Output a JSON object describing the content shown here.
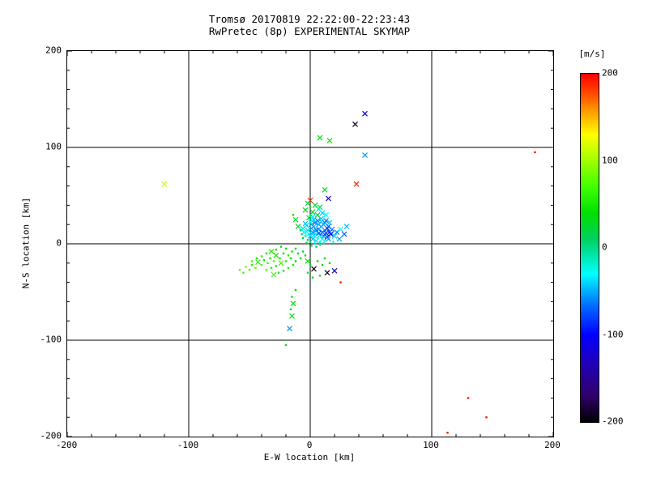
{
  "title": {
    "line1": "Tromsø 20170819 22:22:00-22:23:43",
    "line2": "RwPretec (8p) EXPERIMENTAL SKYMAP"
  },
  "chart_data": {
    "type": "scatter",
    "title": "Tromsø 20170819 22:22:00-22:23:43",
    "subtitle": "RwPretec (8p) EXPERIMENTAL SKYMAP",
    "xlabel": "E-W location [km]",
    "ylabel": "N-S location [km]",
    "xlim": [
      -200,
      200
    ],
    "ylim": [
      -200,
      200
    ],
    "x_ticks": [
      -200,
      -100,
      0,
      100,
      200
    ],
    "y_ticks": [
      -200,
      -100,
      0,
      100,
      200
    ],
    "grid": true,
    "background": "#ffffff",
    "axis_color": "#000000",
    "colorbar": {
      "label": "[m/s]",
      "ticks": [
        200,
        100,
        0,
        -100,
        -200
      ],
      "min": -200,
      "max": 200,
      "stops": [
        [
          -200,
          "#000000"
        ],
        [
          -170,
          "#30006a"
        ],
        [
          -130,
          "#2000c0"
        ],
        [
          -100,
          "#0000ff"
        ],
        [
          -70,
          "#0060ff"
        ],
        [
          -45,
          "#00c0ff"
        ],
        [
          -30,
          "#00ffff"
        ],
        [
          -10,
          "#00e8b0"
        ],
        [
          10,
          "#00d060"
        ],
        [
          40,
          "#00e000"
        ],
        [
          70,
          "#40ff00"
        ],
        [
          100,
          "#a0ff00"
        ],
        [
          130,
          "#ffff00"
        ],
        [
          160,
          "#ff9000"
        ],
        [
          180,
          "#ff4000"
        ],
        [
          200,
          "#ff0000"
        ]
      ]
    },
    "points": [
      [
        45,
        135,
        -110,
        "x"
      ],
      [
        37,
        124,
        -195,
        "x"
      ],
      [
        8,
        110,
        35,
        "x"
      ],
      [
        16,
        107,
        45,
        "x"
      ],
      [
        45,
        92,
        -55,
        "x"
      ],
      [
        185,
        95,
        195,
        "d"
      ],
      [
        38,
        62,
        190,
        "x"
      ],
      [
        -120,
        62,
        110,
        "x"
      ],
      [
        0,
        45,
        185,
        "x"
      ],
      [
        15,
        47,
        -120,
        "x"
      ],
      [
        12,
        56,
        30,
        "x"
      ],
      [
        8,
        38,
        25,
        "x"
      ],
      [
        25,
        -40,
        195,
        "d"
      ],
      [
        -15,
        -75,
        35,
        "x"
      ],
      [
        -17,
        -88,
        -55,
        "x"
      ],
      [
        -20,
        -105,
        30,
        "d"
      ],
      [
        130,
        -160,
        195,
        "d"
      ],
      [
        145,
        -180,
        195,
        "d"
      ],
      [
        113,
        -196,
        195,
        "d"
      ],
      [
        3,
        -26,
        -195,
        "x"
      ],
      [
        14,
        -30,
        -195,
        "x"
      ],
      [
        20,
        -28,
        -130,
        "x"
      ],
      [
        2,
        33,
        40,
        "x"
      ],
      [
        -4,
        35,
        30,
        "x"
      ],
      [
        7,
        36,
        -20,
        "x"
      ],
      [
        10,
        32,
        -40,
        "x"
      ],
      [
        4,
        40,
        25,
        "x"
      ],
      [
        0,
        38,
        35,
        "d"
      ],
      [
        13,
        30,
        -30,
        "x"
      ],
      [
        -2,
        42,
        20,
        "x"
      ],
      [
        0,
        8,
        -40,
        "x"
      ],
      [
        2,
        12,
        -55,
        "x"
      ],
      [
        5,
        10,
        -30,
        "d"
      ],
      [
        7,
        15,
        -60,
        "x"
      ],
      [
        3,
        18,
        -45,
        "x"
      ],
      [
        -2,
        14,
        -35,
        "x"
      ],
      [
        1,
        20,
        -50,
        "x"
      ],
      [
        4,
        22,
        -65,
        "x"
      ],
      [
        8,
        9,
        -25,
        "x"
      ],
      [
        10,
        12,
        -70,
        "x"
      ],
      [
        6,
        6,
        -20,
        "d"
      ],
      [
        9,
        18,
        -40,
        "x"
      ],
      [
        12,
        14,
        -55,
        "x"
      ],
      [
        -1,
        10,
        -30,
        "x"
      ],
      [
        -4,
        8,
        -15,
        "d"
      ],
      [
        2,
        5,
        -45,
        "x"
      ],
      [
        5,
        3,
        -35,
        "x"
      ],
      [
        11,
        8,
        -60,
        "x"
      ],
      [
        13,
        11,
        -80,
        "x"
      ],
      [
        14,
        16,
        -90,
        "x"
      ],
      [
        7,
        20,
        -50,
        "x"
      ],
      [
        3,
        25,
        -40,
        "x"
      ],
      [
        0,
        23,
        -30,
        "x"
      ],
      [
        -3,
        19,
        -20,
        "x"
      ],
      [
        6,
        24,
        -60,
        "x"
      ],
      [
        9,
        26,
        -45,
        "x"
      ],
      [
        12,
        22,
        -55,
        "x"
      ],
      [
        15,
        18,
        -70,
        "x"
      ],
      [
        16,
        12,
        -85,
        "x"
      ],
      [
        10,
        5,
        -25,
        "x"
      ],
      [
        8,
        2,
        -15,
        "d"
      ],
      [
        4,
        0,
        -10,
        "d"
      ],
      [
        0,
        2,
        5,
        "d"
      ],
      [
        -2,
        4,
        15,
        "d"
      ],
      [
        -5,
        12,
        -25,
        "x"
      ],
      [
        -6,
        16,
        -35,
        "x"
      ],
      [
        -4,
        21,
        -45,
        "x"
      ],
      [
        1,
        16,
        -55,
        "x"
      ],
      [
        5,
        14,
        -65,
        "x"
      ],
      [
        7,
        11,
        -75,
        "x"
      ],
      [
        3,
        9,
        -40,
        "x"
      ],
      [
        11,
        20,
        -50,
        "x"
      ],
      [
        13,
        24,
        -60,
        "x"
      ],
      [
        2,
        28,
        -35,
        "x"
      ],
      [
        6,
        30,
        20,
        "x"
      ],
      [
        -1,
        27,
        30,
        "x"
      ],
      [
        9,
        23,
        -45,
        "x"
      ],
      [
        14,
        7,
        -95,
        "x"
      ],
      [
        17,
        10,
        -105,
        "x"
      ],
      [
        12,
        3,
        -30,
        "d"
      ],
      [
        15,
        5,
        -50,
        "x"
      ],
      [
        18,
        15,
        -60,
        "x"
      ],
      [
        16,
        22,
        -40,
        "x"
      ],
      [
        -7,
        10,
        0,
        "d"
      ],
      [
        -8,
        14,
        10,
        "d"
      ],
      [
        -6,
        6,
        20,
        "d"
      ],
      [
        -3,
        1,
        25,
        "d"
      ],
      [
        1,
        -2,
        15,
        "d"
      ],
      [
        5,
        -3,
        10,
        "d"
      ],
      [
        8,
        -1,
        -5,
        "d"
      ],
      [
        11,
        1,
        -20,
        "d"
      ],
      [
        20,
        8,
        -40,
        "x"
      ],
      [
        22,
        12,
        -60,
        "x"
      ],
      [
        25,
        15,
        -30,
        "x"
      ],
      [
        19,
        2,
        -20,
        "d"
      ],
      [
        24,
        5,
        -50,
        "x"
      ],
      [
        28,
        10,
        -70,
        "x"
      ],
      [
        30,
        18,
        -45,
        "x"
      ],
      [
        -10,
        18,
        25,
        "x"
      ],
      [
        -12,
        25,
        35,
        "x"
      ],
      [
        -14,
        30,
        40,
        "d"
      ],
      [
        -12,
        -5,
        30,
        "d"
      ],
      [
        -15,
        -8,
        45,
        "d"
      ],
      [
        -18,
        -12,
        55,
        "d"
      ],
      [
        -22,
        -10,
        40,
        "d"
      ],
      [
        -25,
        -15,
        60,
        "d"
      ],
      [
        -28,
        -12,
        50,
        "x"
      ],
      [
        -30,
        -18,
        70,
        "d"
      ],
      [
        -33,
        -15,
        55,
        "d"
      ],
      [
        -35,
        -20,
        65,
        "d"
      ],
      [
        -38,
        -17,
        45,
        "d"
      ],
      [
        -40,
        -22,
        75,
        "d"
      ],
      [
        -43,
        -19,
        60,
        "x"
      ],
      [
        -45,
        -25,
        80,
        "d"
      ],
      [
        -48,
        -22,
        55,
        "d"
      ],
      [
        -50,
        -27,
        70,
        "d"
      ],
      [
        -53,
        -24,
        90,
        "d"
      ],
      [
        -55,
        -30,
        65,
        "d"
      ],
      [
        -58,
        -27,
        75,
        "d"
      ],
      [
        -20,
        -5,
        35,
        "d"
      ],
      [
        -24,
        -3,
        25,
        "d"
      ],
      [
        -28,
        -6,
        45,
        "d"
      ],
      [
        -32,
        -8,
        55,
        "x"
      ],
      [
        -36,
        -10,
        40,
        "d"
      ],
      [
        -40,
        -13,
        60,
        "d"
      ],
      [
        -44,
        -15,
        50,
        "d"
      ],
      [
        -48,
        -18,
        70,
        "d"
      ],
      [
        -16,
        -15,
        45,
        "d"
      ],
      [
        -20,
        -18,
        55,
        "d"
      ],
      [
        -24,
        -20,
        65,
        "x"
      ],
      [
        -28,
        -23,
        50,
        "d"
      ],
      [
        -32,
        -25,
        60,
        "d"
      ],
      [
        -36,
        -27,
        75,
        "d"
      ],
      [
        -10,
        -10,
        35,
        "d"
      ],
      [
        -8,
        -15,
        25,
        "d"
      ],
      [
        -12,
        -18,
        40,
        "d"
      ],
      [
        -14,
        -22,
        50,
        "d"
      ],
      [
        -18,
        -25,
        60,
        "d"
      ],
      [
        -22,
        -28,
        45,
        "d"
      ],
      [
        -26,
        -30,
        55,
        "d"
      ],
      [
        -30,
        -32,
        70,
        "x"
      ],
      [
        -6,
        -8,
        20,
        "d"
      ],
      [
        -4,
        -12,
        30,
        "d"
      ],
      [
        -2,
        -18,
        40,
        "x"
      ],
      [
        0,
        -22,
        25,
        "d"
      ],
      [
        10,
        -22,
        30,
        "d"
      ],
      [
        6,
        -18,
        35,
        "d"
      ],
      [
        12,
        -15,
        20,
        "d"
      ],
      [
        16,
        -20,
        40,
        "d"
      ],
      [
        -2,
        -30,
        50,
        "d"
      ],
      [
        2,
        -35,
        30,
        "d"
      ],
      [
        8,
        -33,
        25,
        "d"
      ],
      [
        -12,
        -48,
        40,
        "d"
      ],
      [
        -15,
        -55,
        30,
        "d"
      ],
      [
        -14,
        -62,
        35,
        "x"
      ],
      [
        -16,
        -68,
        25,
        "d"
      ]
    ]
  }
}
